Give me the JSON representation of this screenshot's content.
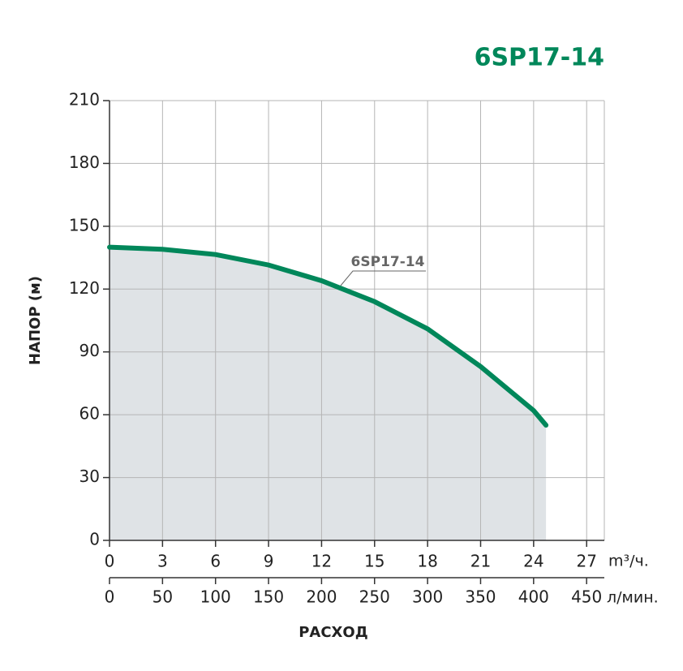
{
  "chart_data": {
    "type": "line",
    "title": "6SP17-14",
    "ylabel": "НАПОР (м)",
    "xlabel": "РАСХОД",
    "x_unit": "m³/ч.",
    "x2_unit": "л/мин.",
    "x": [
      0,
      3,
      6,
      9,
      12,
      15,
      18,
      21,
      24,
      24.7
    ],
    "series": [
      {
        "name": "6SP17-14",
        "color": "#00875a",
        "values": [
          140,
          139,
          136.5,
          131.5,
          124,
          114,
          101,
          83,
          62,
          55
        ]
      }
    ],
    "fill_color": "#dfe3e6",
    "xlim": [
      0,
      28
    ],
    "xticks": [
      0,
      3,
      6,
      9,
      12,
      15,
      18,
      21,
      24,
      27
    ],
    "x2lim": [
      0,
      466.7
    ],
    "x2ticks": [
      0,
      50,
      100,
      150,
      200,
      250,
      300,
      350,
      400,
      450
    ],
    "ylim": [
      0,
      210
    ],
    "yticks": [
      0,
      30,
      60,
      90,
      120,
      150,
      180,
      210
    ],
    "grid": true
  }
}
